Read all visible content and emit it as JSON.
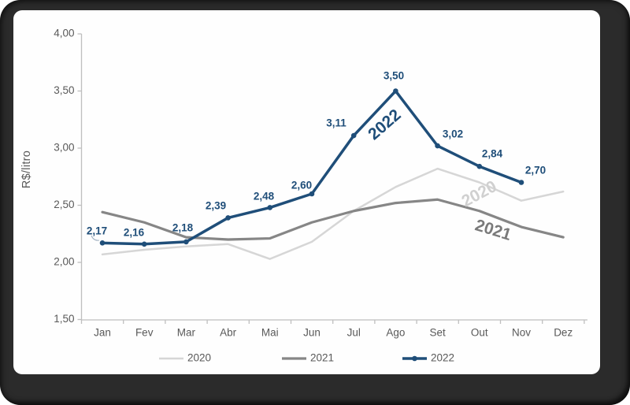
{
  "chart_data": {
    "type": "line",
    "title": "",
    "ylabel": "R$/litro",
    "xlabel": "",
    "categories": [
      "Jan",
      "Fev",
      "Mar",
      "Abr",
      "Mai",
      "Jun",
      "Jul",
      "Ago",
      "Set",
      "Out",
      "Nov",
      "Dez"
    ],
    "y_axis": {
      "range": [
        1.5,
        4.0
      ],
      "ticks": [
        {
          "value": 4.0,
          "label": "4,00"
        },
        {
          "value": 3.5,
          "label": "3,50"
        },
        {
          "value": 3.0,
          "label": "3,00"
        },
        {
          "value": 2.5,
          "label": "2,50"
        },
        {
          "value": 2.0,
          "label": "2,00"
        },
        {
          "value": 1.5,
          "label": "1,50"
        }
      ]
    },
    "grid": "off",
    "legend_position": "bottom",
    "axis_text_color": "#595959",
    "axis_line_color": "#bfbfbf",
    "series": [
      {
        "name": "2020",
        "color": "#d6d6d6",
        "inline_label_color": "#d0d0d0",
        "values": [
          2.07,
          2.11,
          2.14,
          2.16,
          2.03,
          2.18,
          2.45,
          2.66,
          2.82,
          2.7,
          2.54,
          2.62
        ]
      },
      {
        "name": "2021",
        "color": "#868686",
        "inline_label_color": "#7a7a7a",
        "values": [
          2.44,
          2.35,
          2.22,
          2.2,
          2.21,
          2.35,
          2.45,
          2.52,
          2.55,
          2.45,
          2.31,
          2.22
        ]
      },
      {
        "name": "2022",
        "color": "#1f4e79",
        "inline_label_color": "#1f4e79",
        "values": [
          2.17,
          2.16,
          2.18,
          2.39,
          2.48,
          2.6,
          3.11,
          3.5,
          3.02,
          2.84,
          2.7
        ],
        "data_labels": [
          "2,17",
          "2,16",
          "2,18",
          "2,39",
          "2,48",
          "2,60",
          "3,11",
          "3,50",
          "3,02",
          "2,84",
          "2,70"
        ]
      }
    ],
    "legend": [
      "2020",
      "2021",
      "2022"
    ]
  }
}
